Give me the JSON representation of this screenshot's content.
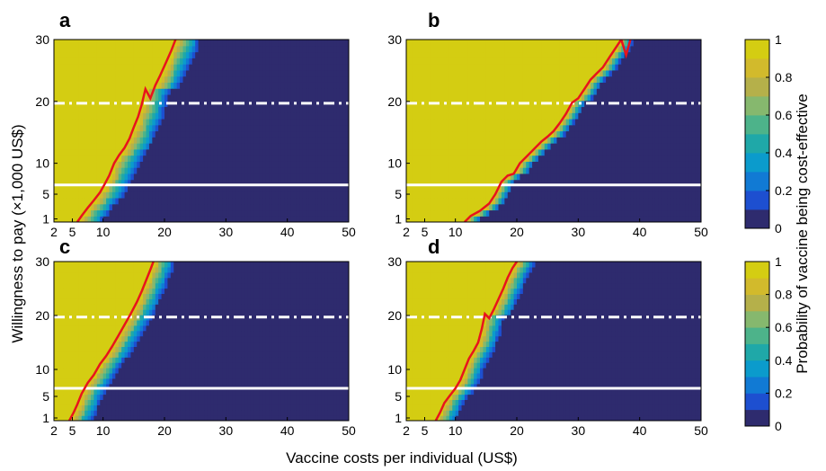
{
  "figure": {
    "ylabel": "Willingness to pay  (×1,000 US$)",
    "xlabel": "Vaccine costs per individual (US$)",
    "colorbar_label": "Probability of vaccine being cost-effective"
  },
  "colors": {
    "colormap": [
      "#2e2b6e",
      "#1d4fd0",
      "#117ad4",
      "#0b9bcc",
      "#1fa8a8",
      "#4db38a",
      "#86b86e",
      "#b5b04a",
      "#d2ba2c",
      "#d4cd12"
    ],
    "threshold_line": "#e8141c",
    "reference_lines": "#ffffff"
  },
  "chart_data": [
    {
      "type": "heatmap",
      "panel": "a",
      "xlim": [
        2,
        50
      ],
      "ylim": [
        0.5,
        30
      ],
      "xticks": [
        "2",
        "5",
        "10",
        "20",
        "30",
        "40",
        "50"
      ],
      "yticks": [
        "1",
        "5",
        "10",
        "20",
        "30"
      ],
      "reference_lines": [
        {
          "style": "solid",
          "y": 6.5
        },
        {
          "style": "dash-dot",
          "y": 19.7
        }
      ],
      "boundary": [
        [
          5.8,
          0.5
        ],
        [
          6.5,
          1.5
        ],
        [
          7.5,
          2.8
        ],
        [
          8.5,
          4
        ],
        [
          9.5,
          5.3
        ],
        [
          10.2,
          6.5
        ],
        [
          11,
          8
        ],
        [
          11.8,
          10
        ],
        [
          12.6,
          11.3
        ],
        [
          13.5,
          12.5
        ],
        [
          14.3,
          14
        ],
        [
          15,
          15.8
        ],
        [
          15.7,
          17.5
        ],
        [
          16.3,
          19.5
        ],
        [
          16.9,
          22
        ],
        [
          17.7,
          20.5
        ],
        [
          18.5,
          22.6
        ],
        [
          19.3,
          24.2
        ],
        [
          20.2,
          26.2
        ],
        [
          21.1,
          28.2
        ],
        [
          21.8,
          30
        ]
      ],
      "transition_width": 4.5
    },
    {
      "type": "heatmap",
      "panel": "b",
      "xlim": [
        2,
        50
      ],
      "ylim": [
        0.5,
        30
      ],
      "xticks": [
        "2",
        "5",
        "10",
        "20",
        "30",
        "40",
        "50"
      ],
      "yticks": [
        "1",
        "5",
        "10",
        "20",
        "30"
      ],
      "reference_lines": [
        {
          "style": "solid",
          "y": 6.5
        },
        {
          "style": "dash-dot",
          "y": 19.7
        }
      ],
      "boundary": [
        [
          11.5,
          0.5
        ],
        [
          12.5,
          1.5
        ],
        [
          14,
          2.3
        ],
        [
          15.5,
          3.5
        ],
        [
          16.5,
          5
        ],
        [
          17.5,
          7
        ],
        [
          18.5,
          8
        ],
        [
          19.5,
          8.3
        ],
        [
          20.5,
          10
        ],
        [
          21.5,
          11
        ],
        [
          22.5,
          12
        ],
        [
          24,
          13.5
        ],
        [
          25,
          14.3
        ],
        [
          26,
          15.2
        ],
        [
          27,
          16.5
        ],
        [
          28,
          18
        ],
        [
          29,
          19.8
        ],
        [
          30,
          20.5
        ],
        [
          31,
          22
        ],
        [
          32,
          23.5
        ],
        [
          33,
          24.5
        ],
        [
          34,
          25.5
        ],
        [
          35,
          27
        ],
        [
          36,
          28.5
        ],
        [
          37,
          30
        ],
        [
          37.8,
          27.5
        ],
        [
          38.5,
          30
        ]
      ],
      "transition_width": 2.5
    },
    {
      "type": "heatmap",
      "panel": "c",
      "xlim": [
        2,
        50
      ],
      "ylim": [
        0.5,
        30
      ],
      "xticks": [
        "2",
        "5",
        "10",
        "20",
        "30",
        "40",
        "50"
      ],
      "yticks": [
        "1",
        "5",
        "10",
        "20",
        "30"
      ],
      "reference_lines": [
        {
          "style": "solid",
          "y": 6.5
        },
        {
          "style": "dash-dot",
          "y": 19.7
        }
      ],
      "boundary": [
        [
          4.5,
          0.5
        ],
        [
          5.2,
          2
        ],
        [
          5.8,
          3.5
        ],
        [
          6.5,
          5.5
        ],
        [
          7.5,
          7.5
        ],
        [
          8.5,
          9
        ],
        [
          9.5,
          11
        ],
        [
          10.5,
          12.5
        ],
        [
          11.5,
          14.3
        ],
        [
          12.5,
          16.3
        ],
        [
          13.5,
          18.3
        ],
        [
          14.5,
          20.3
        ],
        [
          15.5,
          22.5
        ],
        [
          16.3,
          24.5
        ],
        [
          17,
          26.5
        ],
        [
          17.7,
          28.5
        ],
        [
          18.2,
          30
        ]
      ],
      "transition_width": 4.0
    },
    {
      "type": "heatmap",
      "panel": "d",
      "xlim": [
        2,
        50
      ],
      "ylim": [
        0.5,
        30
      ],
      "xticks": [
        "2",
        "5",
        "10",
        "20",
        "30",
        "40",
        "50"
      ],
      "yticks": [
        "1",
        "5",
        "10",
        "20",
        "30"
      ],
      "reference_lines": [
        {
          "style": "solid",
          "y": 6.5
        },
        {
          "style": "dash-dot",
          "y": 19.7
        }
      ],
      "boundary": [
        [
          6.8,
          0.5
        ],
        [
          7.5,
          2
        ],
        [
          8.2,
          3.8
        ],
        [
          9,
          5
        ],
        [
          10,
          6.5
        ],
        [
          10.8,
          8
        ],
        [
          11.5,
          10
        ],
        [
          12.2,
          12
        ],
        [
          13,
          13.5
        ],
        [
          13.7,
          15
        ],
        [
          14.3,
          17.5
        ],
        [
          14.8,
          20.3
        ],
        [
          15.5,
          19.5
        ],
        [
          16.2,
          21
        ],
        [
          17,
          23
        ],
        [
          17.8,
          25
        ],
        [
          18.5,
          27
        ],
        [
          19.3,
          28.8
        ],
        [
          20,
          30
        ]
      ],
      "transition_width": 3.5
    }
  ],
  "colorbars": [
    {
      "ticks": [
        "0",
        "0.2",
        "0.4",
        "0.6",
        "0.8",
        "1"
      ]
    },
    {
      "ticks": [
        "0",
        "0.2",
        "0.4",
        "0.6",
        "0.8",
        "1"
      ]
    }
  ]
}
